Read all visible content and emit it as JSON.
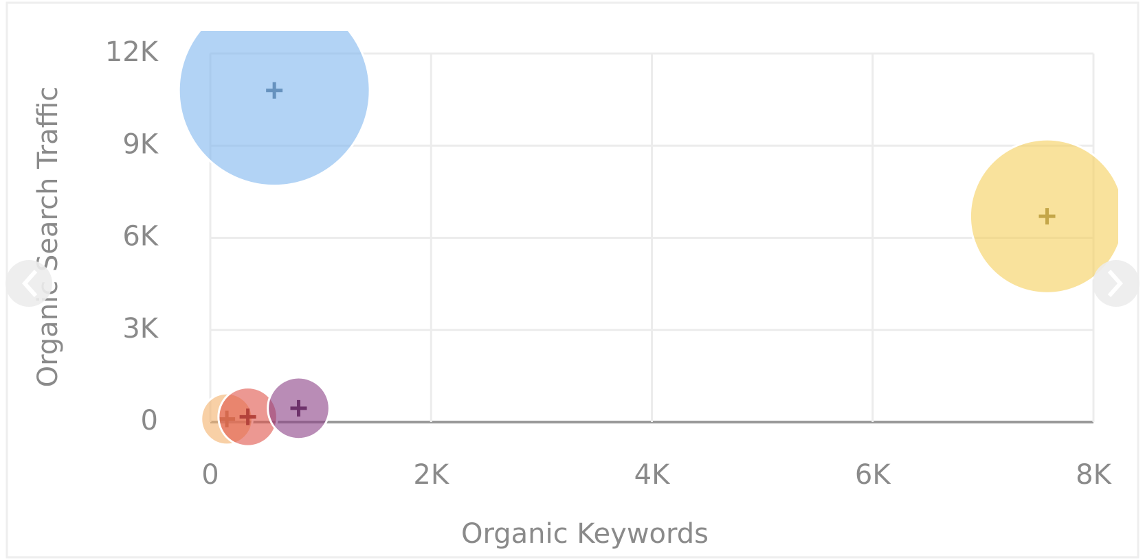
{
  "chart_data": {
    "type": "bubble",
    "x_label": "Organic Keywords",
    "y_label": "Organic Search Traffic",
    "xlim": [
      0,
      8000
    ],
    "ylim": [
      0,
      12000
    ],
    "xticks": [
      0,
      {
        "value": 2000,
        "label": "2K"
      },
      {
        "value": 4000,
        "label": "4K"
      },
      {
        "value": 6000,
        "label": "6K"
      },
      {
        "value": 8000,
        "label": "8K"
      }
    ],
    "yticks": [
      0,
      {
        "value": 3000,
        "label": "3K"
      },
      {
        "value": 6000,
        "label": "6K"
      },
      {
        "value": 9000,
        "label": "9K"
      },
      {
        "value": 12000,
        "label": "12K"
      }
    ],
    "grid": true,
    "series": [
      {
        "color": "#f4b06a",
        "x": [
          150
        ],
        "values": [
          100
        ],
        "sizes": [
          122
        ]
      },
      {
        "color": "#e0534a",
        "x": [
          340
        ],
        "values": [
          170
        ],
        "sizes": [
          160
        ]
      },
      {
        "color": "#8a3f86",
        "x": [
          800
        ],
        "values": [
          450
        ],
        "sizes": [
          176
        ]
      },
      {
        "color": "#7fb6ee",
        "x": [
          580
        ],
        "values": [
          10800
        ],
        "sizes": [
          1690
        ]
      },
      {
        "color": "#f5cf5a",
        "x": [
          7580
        ],
        "values": [
          6700
        ],
        "sizes": [
          1100
        ]
      }
    ]
  }
}
